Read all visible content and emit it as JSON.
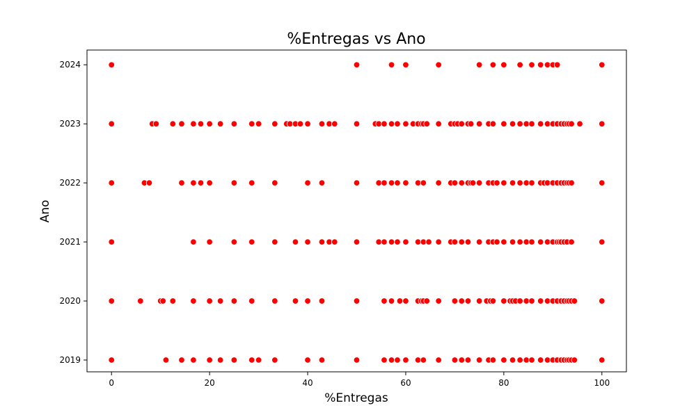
{
  "chart_data": {
    "type": "scatter",
    "title": "%Entregas vs Ano",
    "xlabel": "%Entregas",
    "ylabel": "Ano",
    "xlim": [
      -5,
      105
    ],
    "ylim": [
      2018.8,
      2024.25
    ],
    "x_ticks": [
      0,
      20,
      40,
      60,
      80,
      100
    ],
    "y_ticks": [
      2019,
      2020,
      2021,
      2022,
      2023,
      2024
    ],
    "grid": false,
    "legend": "none",
    "marker_color": "#ff0000",
    "marker_edge_color": "#ffffff",
    "points_by_year": [
      {
        "year": 2024,
        "x": [
          0,
          50,
          57.1,
          60,
          66.7,
          75,
          77.8,
          80,
          83.3,
          85.7,
          87.5,
          88.9,
          90,
          90.9,
          100
        ]
      },
      {
        "year": 2023,
        "x": [
          0,
          8.3,
          9.1,
          12.5,
          14.3,
          16.7,
          18.2,
          20,
          22.2,
          25,
          28.6,
          30,
          33.3,
          35.7,
          36.4,
          37.5,
          38.5,
          40,
          42.9,
          44.4,
          45.5,
          50,
          53.8,
          54.5,
          55.6,
          57.1,
          58.3,
          60,
          61.5,
          62.5,
          63.2,
          63.6,
          64.3,
          66.7,
          69.2,
          70,
          70.6,
          71.4,
          72.7,
          73.3,
          75,
          76.9,
          77.8,
          80,
          81.8,
          83.3,
          84.6,
          85.7,
          87.5,
          88.9,
          90,
          90.9,
          91.7,
          92.3,
          92.9,
          93.3,
          93.8,
          95.5,
          100
        ]
      },
      {
        "year": 2022,
        "x": [
          0,
          6.7,
          7.7,
          14.3,
          16.7,
          18.2,
          20,
          25,
          28.6,
          33.3,
          40,
          42.9,
          50,
          54.5,
          55.6,
          57.1,
          58.3,
          60,
          62.5,
          63.6,
          66.7,
          69.2,
          70,
          71.4,
          72.7,
          73.3,
          73.7,
          75,
          76.9,
          77.8,
          78.6,
          80,
          81.8,
          83.3,
          84.6,
          85.7,
          87.5,
          88.2,
          88.9,
          90,
          90.9,
          91.7,
          92.3,
          92.9,
          93.3,
          93.8,
          100
        ]
      },
      {
        "year": 2021,
        "x": [
          0,
          16.7,
          20,
          25,
          28.6,
          33.3,
          37.5,
          40,
          42.9,
          44.4,
          45.5,
          50,
          54.5,
          55.6,
          57.1,
          58.3,
          60,
          62.5,
          63.6,
          64.7,
          66.7,
          69.2,
          70,
          71.4,
          72.7,
          75,
          76.9,
          77.8,
          78.6,
          80,
          81.8,
          83.3,
          84.6,
          85.7,
          87.5,
          88.9,
          90,
          90.9,
          91.3,
          91.7,
          92.3,
          92.9,
          93.8,
          100
        ]
      },
      {
        "year": 2020,
        "x": [
          0,
          5.9,
          10,
          10.5,
          12.5,
          16.7,
          20,
          22.2,
          25,
          28.6,
          33.3,
          37.5,
          40,
          42.9,
          50,
          55.6,
          57.1,
          58.8,
          60,
          62.5,
          63.2,
          63.6,
          64.3,
          66.7,
          70,
          71.4,
          72.7,
          75,
          76.5,
          77.3,
          77.8,
          80,
          81.3,
          81.8,
          82.4,
          83.3,
          84.6,
          85.7,
          87.5,
          88.9,
          90,
          90.9,
          91.7,
          92.3,
          92.9,
          93.3,
          93.8,
          94.4,
          100
        ]
      },
      {
        "year": 2019,
        "x": [
          0,
          11.1,
          14.3,
          16.7,
          20,
          22.2,
          25,
          28.6,
          30,
          33.3,
          40,
          42.9,
          50,
          55.6,
          57.1,
          58.3,
          60,
          62.5,
          63.6,
          66.7,
          70,
          71.4,
          72.7,
          75,
          76.9,
          77.8,
          80,
          81.8,
          83.3,
          84.6,
          85.7,
          87.5,
          88.9,
          90,
          90.9,
          91.7,
          92.3,
          92.9,
          93.3,
          93.8,
          94.4,
          100
        ]
      }
    ]
  }
}
